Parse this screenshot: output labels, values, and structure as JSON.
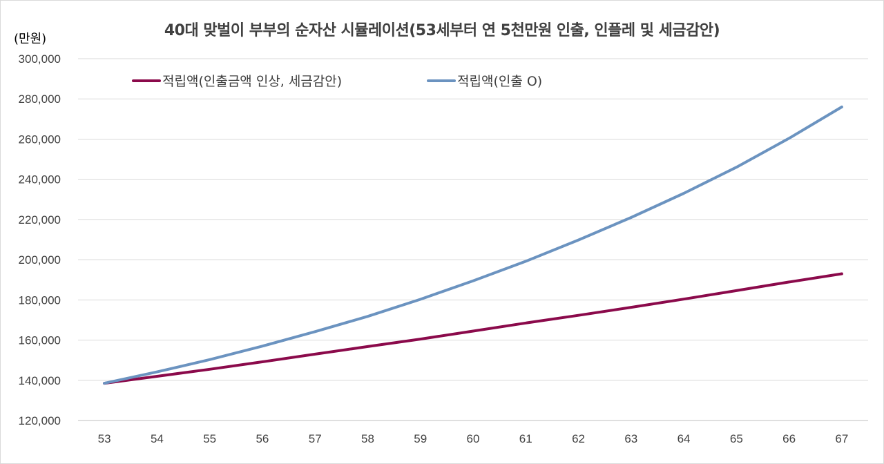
{
  "chart_data": {
    "type": "line",
    "title": "40대 맞벌이 부부의 순자산 시뮬레이션(53세부터 연 5천만원 인출, 인플레 및 세금감안)",
    "ylabel": "(만원)",
    "xlabel": "",
    "x": [
      "53",
      "54",
      "55",
      "56",
      "57",
      "58",
      "59",
      "60",
      "61",
      "62",
      "63",
      "64",
      "65",
      "66",
      "67"
    ],
    "ylim": [
      120000,
      300000
    ],
    "yticks": [
      "120,000",
      "140,000",
      "160,000",
      "180,000",
      "200,000",
      "220,000",
      "240,000",
      "260,000",
      "280,000",
      "300,000"
    ],
    "ytick_values": [
      120000,
      140000,
      160000,
      180000,
      200000,
      220000,
      240000,
      260000,
      280000,
      300000
    ],
    "grid": true,
    "legend_position": "top",
    "series": [
      {
        "name": "적립액(인출금액 인상, 세금감안)",
        "color": "#8B0A4B",
        "values": [
          138500,
          142000,
          145500,
          149200,
          153000,
          156800,
          160500,
          164500,
          168500,
          172300,
          176300,
          180400,
          184600,
          188900,
          193000
        ]
      },
      {
        "name": "적립액(인출 O)",
        "color": "#6B93C0",
        "values": [
          138500,
          144200,
          150300,
          157000,
          164200,
          171800,
          180300,
          189500,
          199200,
          209800,
          221000,
          233000,
          246000,
          260400,
          276000
        ]
      }
    ]
  }
}
